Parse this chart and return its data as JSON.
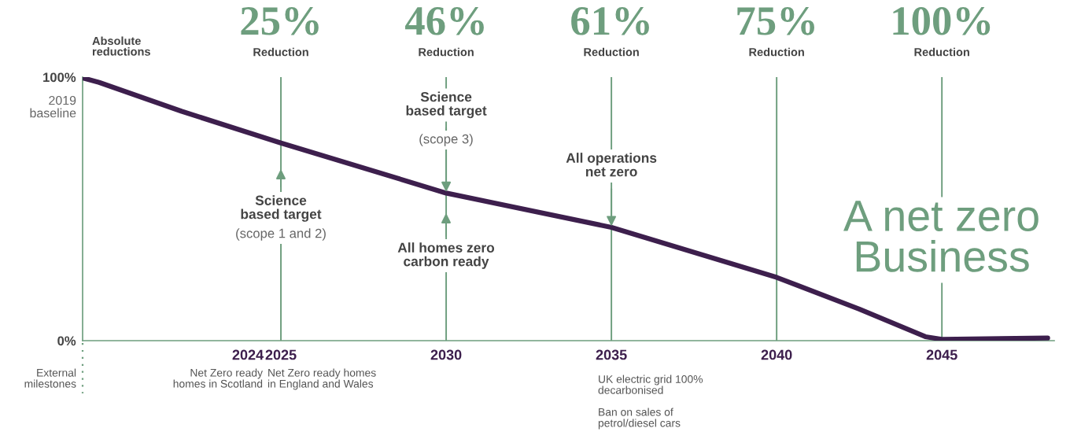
{
  "chart_data": {
    "type": "line",
    "title": "A net zero\nBusiness",
    "ylabel": "Absolute\nreductions",
    "x": [
      2019,
      2019.5,
      2022,
      2025,
      2030,
      2035,
      2040,
      2042.5,
      2044.5,
      2045,
      2048.2
    ],
    "series": [
      {
        "color": "#3d1f4d",
        "values": [
          99.7,
          98,
          87,
          75,
          56,
          43,
          24,
          12,
          1.5,
          0.5,
          1
        ]
      }
    ],
    "xlim": [
      2019,
      2048.4
    ],
    "ylim": [
      0,
      100
    ],
    "xticks": [
      2024,
      2025,
      2030,
      2035,
      2040,
      2045
    ],
    "yticks": [
      {
        "value": 0,
        "label": "0%"
      },
      {
        "value": 100,
        "label": "100%"
      }
    ],
    "ref_lines": [
      {
        "axis": "x",
        "value": 2025,
        "label": "25%\nReduction",
        "color": "#6e9e7e"
      },
      {
        "axis": "x",
        "value": 2030,
        "label": "46%\nReduction",
        "color": "#6e9e7e"
      },
      {
        "axis": "x",
        "value": 2035,
        "label": "61%\nReduction",
        "color": "#6e9e7e"
      },
      {
        "axis": "x",
        "value": 2040,
        "label": "75%\nReduction",
        "color": "#6e9e7e"
      },
      {
        "axis": "x",
        "value": 2045,
        "label": "100%\nReduction",
        "color": "#6e9e7e"
      }
    ],
    "annotations": [
      "Science\nbased target",
      "(scope 1 and 2)",
      {
        "text": "Science\nbased target",
        "x": 2030,
        "y": 56
      },
      "(scope 3)",
      "All homes zero\ncarbon ready",
      {
        "text": "All operations\nnet zero",
        "x": 2035,
        "y": 43
      },
      "2019\nbaseline",
      "External\nmilestones",
      "Net Zero ready\nhomes in Scotland",
      "Net Zero ready homes\nin England and Wales",
      "UK electric grid 100%\ndecarbonised\n\nBan on sales of\npetrol/diesel cars"
    ],
    "grid": false,
    "legend": false,
    "marker": "none",
    "line_style": "solid"
  }
}
